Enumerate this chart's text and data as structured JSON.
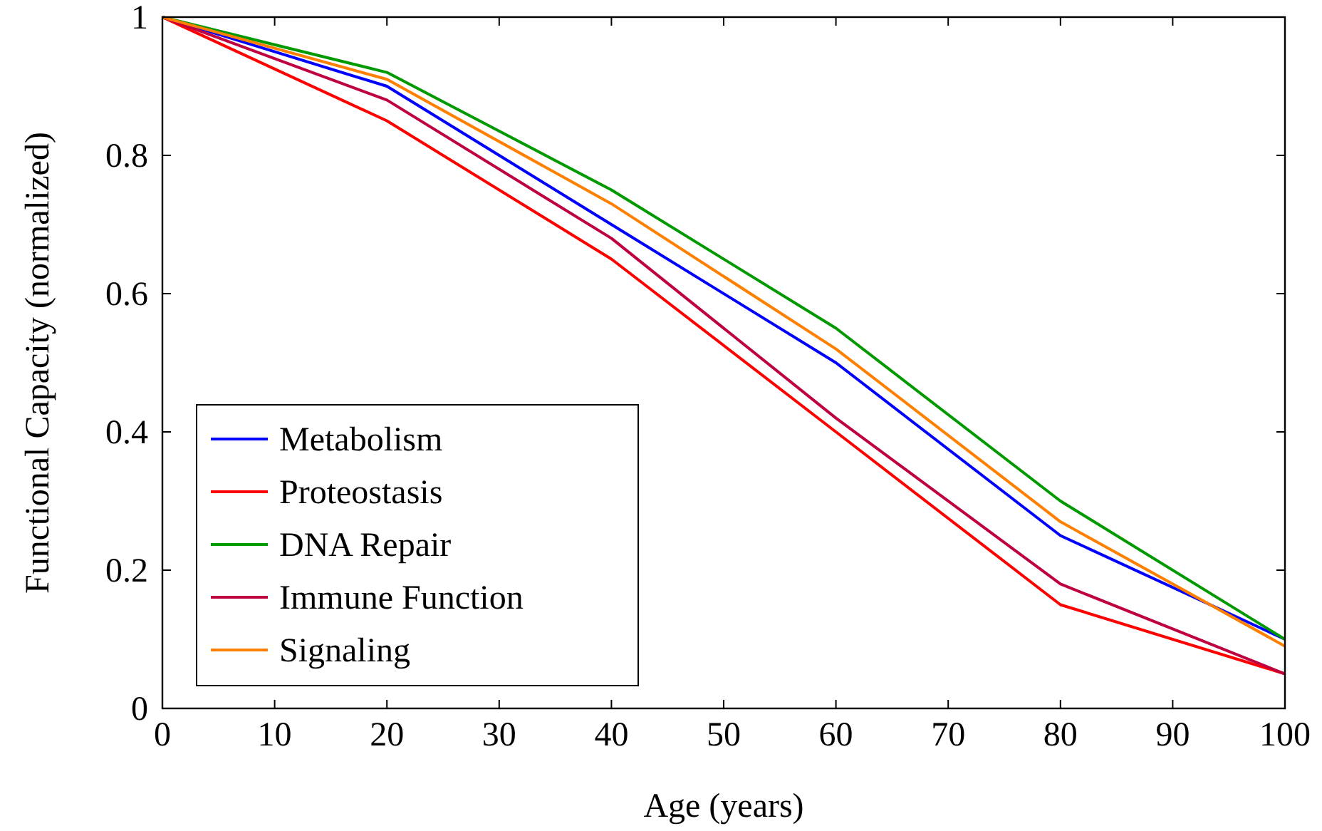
{
  "chart_data": {
    "type": "line",
    "xlabel": "Age (years)",
    "ylabel": "Functional Capacity (normalized)",
    "x": [
      0,
      20,
      40,
      60,
      80,
      100
    ],
    "series": [
      {
        "name": "Metabolism",
        "color": "#0000ff",
        "values": [
          1,
          0.9,
          0.7,
          0.5,
          0.25,
          0.1
        ]
      },
      {
        "name": "Proteostasis",
        "color": "#ff0000",
        "values": [
          1,
          0.85,
          0.65,
          0.4,
          0.15,
          0.05
        ]
      },
      {
        "name": "DNA Repair",
        "color": "#009900",
        "values": [
          1,
          0.92,
          0.75,
          0.55,
          0.3,
          0.1
        ]
      },
      {
        "name": "Immune Function",
        "color": "#bf0040",
        "values": [
          1,
          0.88,
          0.68,
          0.42,
          0.18,
          0.05
        ]
      },
      {
        "name": "Signaling",
        "color": "#ff8000",
        "values": [
          1,
          0.91,
          0.73,
          0.52,
          0.27,
          0.09
        ]
      }
    ],
    "xlim": [
      0,
      100
    ],
    "xticks": [
      0,
      10,
      20,
      30,
      40,
      50,
      60,
      70,
      80,
      90,
      100
    ],
    "ylim": [
      0,
      1
    ],
    "yticks": [
      0,
      0.2,
      0.4,
      0.6,
      0.8,
      1
    ],
    "grid": false,
    "legend": "bottom left",
    "marker": "none",
    "line_style": "solid"
  }
}
